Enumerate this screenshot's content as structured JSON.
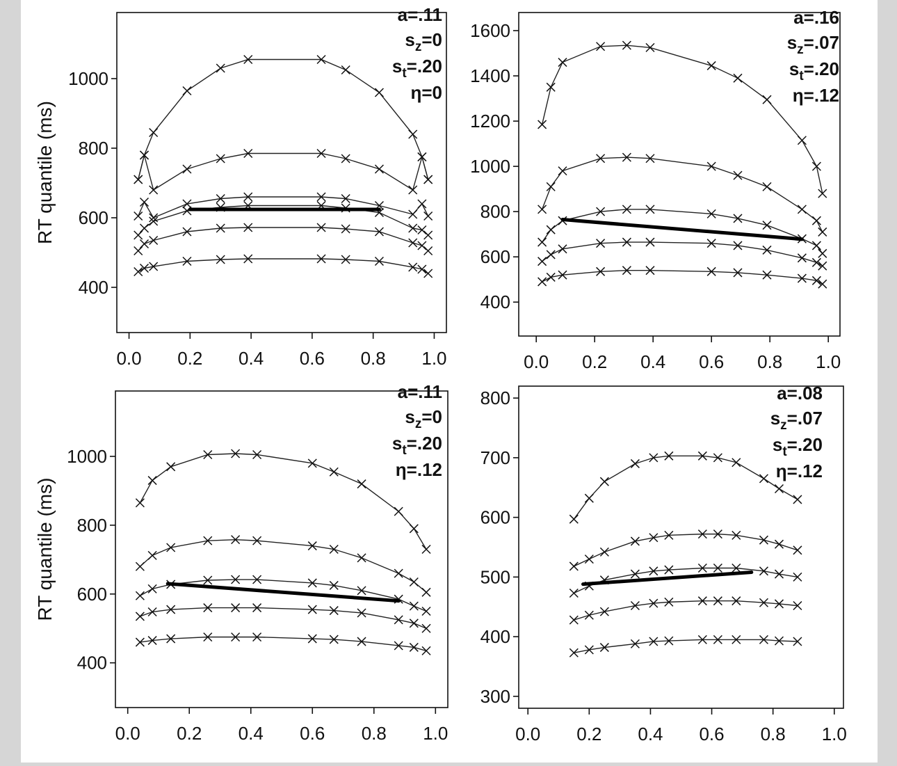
{
  "figure": {
    "panels": [
      {
        "params": [
          {
            "base": "a=.11",
            "sub": ""
          },
          {
            "base": "s",
            "sub": "z",
            "rest": "=0"
          },
          {
            "base": "s",
            "sub": "t",
            "rest": "=.20"
          },
          {
            "base": "η=0",
            "sub": ""
          }
        ]
      },
      {
        "params": [
          {
            "base": "a=.16",
            "sub": ""
          },
          {
            "base": "s",
            "sub": "z",
            "rest": "=.07"
          },
          {
            "base": "s",
            "sub": "t",
            "rest": "=.20"
          },
          {
            "base": "η=.12",
            "sub": ""
          }
        ]
      },
      {
        "params": [
          {
            "base": "a=.11",
            "sub": ""
          },
          {
            "base": "s",
            "sub": "z",
            "rest": "=0"
          },
          {
            "base": "s",
            "sub": "t",
            "rest": "=.20"
          },
          {
            "base": "η=.12",
            "sub": ""
          }
        ]
      },
      {
        "params": [
          {
            "base": "a=.08",
            "sub": ""
          },
          {
            "base": "s",
            "sub": "z",
            "rest": "=.07"
          },
          {
            "base": "s",
            "sub": "t",
            "rest": "=.20"
          },
          {
            "base": "η=.12",
            "sub": ""
          }
        ]
      }
    ]
  },
  "chart_data": [
    {
      "type": "line",
      "ylabel": "RT quantile (ms)",
      "xlim": [
        -0.04,
        1.04
      ],
      "ylim": [
        270,
        1190
      ],
      "xticks": [
        "0.0",
        "0.2",
        "0.4",
        "0.6",
        "0.8",
        "1.0"
      ],
      "yticks": [
        "400",
        "600",
        "800",
        "1000"
      ],
      "x": [
        0.03,
        0.05,
        0.08,
        0.19,
        0.3,
        0.39,
        0.63,
        0.71,
        0.82,
        0.93,
        0.96,
        0.98
      ],
      "series": [
        {
          "values": [
            445,
            455,
            460,
            475,
            480,
            482,
            482,
            480,
            475,
            458,
            452,
            440
          ]
        },
        {
          "values": [
            505,
            525,
            535,
            560,
            570,
            572,
            572,
            568,
            560,
            528,
            520,
            505
          ]
        },
        {
          "values": [
            550,
            570,
            590,
            620,
            630,
            635,
            635,
            628,
            615,
            570,
            565,
            550
          ]
        },
        {
          "values": [
            605,
            645,
            600,
            640,
            655,
            660,
            660,
            655,
            635,
            610,
            640,
            605
          ]
        },
        {
          "values": [
            710,
            780,
            680,
            740,
            770,
            785,
            785,
            770,
            740,
            680,
            775,
            710
          ]
        },
        {
          "values": [
            710,
            780,
            845,
            965,
            1030,
            1055,
            1055,
            1025,
            960,
            840,
            775,
            710
          ]
        }
      ],
      "thick_line": {
        "x": [
          0.2,
          0.82
        ],
        "y": [
          624,
          624
        ]
      }
    },
    {
      "type": "line",
      "xlim": [
        -0.06,
        1.04
      ],
      "ylim": [
        250,
        1680
      ],
      "xticks": [
        "0.0",
        "0.2",
        "0.4",
        "0.6",
        "0.8",
        "1.0"
      ],
      "yticks": [
        "400",
        "600",
        "800",
        "1000",
        "1200",
        "1400",
        "1600"
      ],
      "x": [
        0.02,
        0.05,
        0.09,
        0.22,
        0.31,
        0.39,
        0.6,
        0.69,
        0.79,
        0.91,
        0.96,
        0.98
      ],
      "series": [
        {
          "values": [
            490,
            510,
            520,
            535,
            540,
            540,
            535,
            530,
            520,
            505,
            495,
            480
          ]
        },
        {
          "values": [
            580,
            610,
            635,
            660,
            665,
            665,
            660,
            650,
            630,
            595,
            575,
            560
          ]
        },
        {
          "values": [
            665,
            720,
            760,
            800,
            810,
            810,
            790,
            770,
            740,
            680,
            650,
            615
          ]
        },
        {
          "values": [
            810,
            910,
            980,
            1035,
            1040,
            1035,
            1000,
            960,
            910,
            810,
            760,
            710
          ]
        },
        {
          "values": [
            1185,
            1350,
            1460,
            1530,
            1535,
            1525,
            1445,
            1390,
            1295,
            1115,
            1000,
            880
          ]
        }
      ],
      "thick_line": {
        "x": [
          0.09,
          0.91
        ],
        "y": [
          765,
          678
        ]
      }
    },
    {
      "type": "line",
      "ylabel": "RT quantile (ms)",
      "xlim": [
        -0.04,
        1.04
      ],
      "ylim": [
        270,
        1190
      ],
      "xticks": [
        "0.0",
        "0.2",
        "0.4",
        "0.6",
        "0.8",
        "1.0"
      ],
      "yticks": [
        "400",
        "600",
        "800",
        "1000"
      ],
      "x": [
        0.04,
        0.08,
        0.14,
        0.26,
        0.35,
        0.42,
        0.6,
        0.67,
        0.76,
        0.88,
        0.93,
        0.97
      ],
      "series": [
        {
          "values": [
            460,
            465,
            470,
            475,
            475,
            475,
            470,
            468,
            462,
            450,
            445,
            435
          ]
        },
        {
          "values": [
            535,
            548,
            555,
            560,
            560,
            560,
            555,
            552,
            545,
            525,
            515,
            500
          ]
        },
        {
          "values": [
            595,
            615,
            628,
            640,
            642,
            642,
            632,
            625,
            610,
            585,
            565,
            550
          ]
        },
        {
          "values": [
            680,
            712,
            735,
            755,
            758,
            755,
            740,
            730,
            705,
            660,
            635,
            605
          ]
        },
        {
          "values": [
            865,
            930,
            970,
            1005,
            1008,
            1005,
            980,
            955,
            920,
            840,
            790,
            730
          ]
        }
      ],
      "thick_line": {
        "x": [
          0.13,
          0.88
        ],
        "y": [
          630,
          580
        ]
      }
    },
    {
      "type": "line",
      "xlim": [
        -0.03,
        1.03
      ],
      "ylim": [
        280,
        820
      ],
      "xticks": [
        "0.0",
        "0.2",
        "0.4",
        "0.6",
        "0.8",
        "1.0"
      ],
      "yticks": [
        "300",
        "400",
        "500",
        "600",
        "700",
        "800"
      ],
      "x": [
        0.15,
        0.2,
        0.25,
        0.35,
        0.41,
        0.46,
        0.57,
        0.62,
        0.68,
        0.77,
        0.82,
        0.88
      ],
      "series": [
        {
          "values": [
            373,
            378,
            382,
            388,
            392,
            393,
            395,
            395,
            395,
            395,
            393,
            392
          ]
        },
        {
          "values": [
            428,
            436,
            442,
            452,
            456,
            458,
            460,
            460,
            460,
            457,
            455,
            452
          ]
        },
        {
          "values": [
            473,
            485,
            495,
            505,
            510,
            512,
            515,
            515,
            515,
            510,
            505,
            500
          ]
        },
        {
          "values": [
            518,
            530,
            542,
            560,
            566,
            570,
            572,
            572,
            570,
            562,
            555,
            545
          ]
        },
        {
          "values": [
            597,
            632,
            660,
            690,
            700,
            703,
            703,
            700,
            692,
            665,
            648,
            630
          ]
        }
      ],
      "thick_line": {
        "x": [
          0.18,
          0.73
        ],
        "y": [
          488,
          508
        ]
      }
    }
  ]
}
